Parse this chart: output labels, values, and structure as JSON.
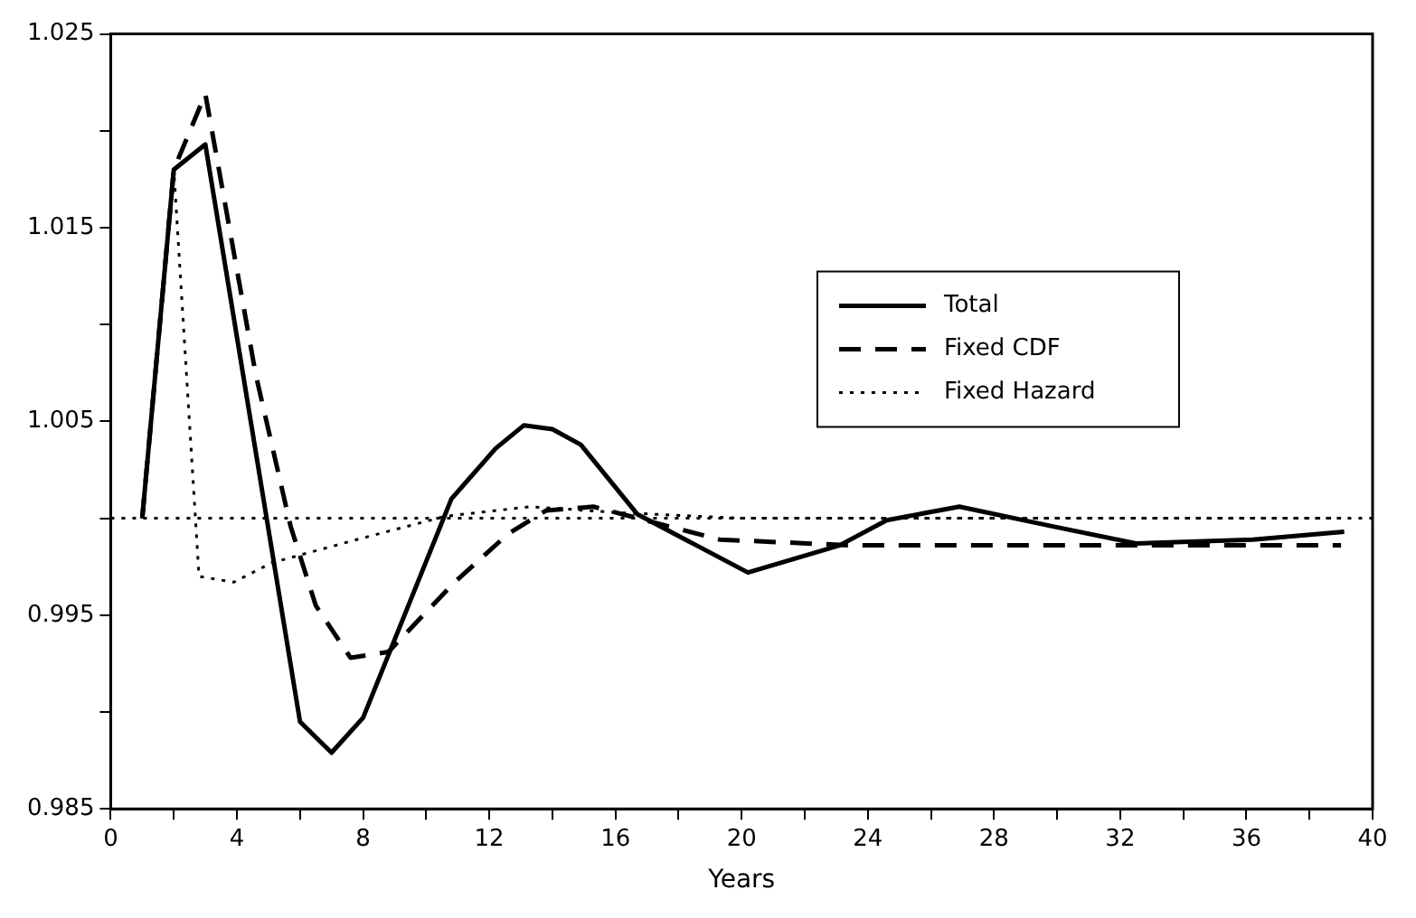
{
  "chart_data": {
    "type": "line",
    "xlabel": "Years",
    "xlim": [
      0,
      40
    ],
    "xticks": [
      0,
      {
        "value": 2,
        "label": null
      },
      4,
      {
        "value": 6,
        "label": null
      },
      8,
      {
        "value": 10,
        "label": null
      },
      12,
      {
        "value": 14,
        "label": null
      },
      16,
      {
        "value": 18,
        "label": null
      },
      20,
      {
        "value": 22,
        "label": null
      },
      24,
      {
        "value": 26,
        "label": null
      },
      28,
      {
        "value": 30,
        "label": null
      },
      32,
      {
        "value": 34,
        "label": null
      },
      36,
      {
        "value": 38,
        "label": null
      },
      40
    ],
    "ylim": [
      0.985,
      1.025
    ],
    "yticks": [
      0.985,
      {
        "value": 0.99,
        "label": null
      },
      0.995,
      {
        "value": 1.0,
        "label": null
      },
      1.005,
      {
        "value": 1.01,
        "label": null
      },
      1.015,
      {
        "value": 1.02,
        "label": null
      },
      1.025
    ],
    "grid": false,
    "legend": "right",
    "marker": "none",
    "ref_lines": [
      {
        "axis": "y",
        "value": 1.0,
        "color": "#000000",
        "line_style": "dotted"
      }
    ],
    "series": [
      {
        "name": "Total",
        "color": "#000000",
        "line_style": "solid",
        "x": [
          1,
          2,
          3,
          6,
          7,
          8,
          10.8,
          12.2,
          13.1,
          14,
          14.9,
          16.7,
          20.2,
          23.1,
          24.6,
          26.9,
          29.8,
          32.5,
          36.2,
          39.1
        ],
        "values": [
          1.0,
          1.018,
          1.0193,
          0.9895,
          0.9879,
          0.9897,
          1.001,
          1.0036,
          1.0048,
          1.0046,
          1.0038,
          1.0002,
          0.9972,
          0.9986,
          0.9999,
          1.0006,
          0.9996,
          0.9987,
          0.9989,
          0.9993
        ]
      },
      {
        "name": "Fixed CDF",
        "color": "#000000",
        "line_style": "dashed",
        "x": [
          1,
          2,
          3,
          4.6,
          5.7,
          6.5,
          7.6,
          8.8,
          10.9,
          12.6,
          13.8,
          15.3,
          19.3,
          23.5,
          39
        ],
        "values": [
          1.0,
          1.018,
          1.0219,
          1.0074,
          0.9996,
          0.9955,
          0.9928,
          0.9931,
          0.9967,
          0.9992,
          1.0004,
          1.0006,
          0.9989,
          0.9986,
          0.9986
        ]
      },
      {
        "name": "Fixed Hazard",
        "color": "#000000",
        "line_style": "dotted",
        "x": [
          1,
          2,
          2.8,
          3.9,
          5.1,
          7.8,
          10.6,
          13.3,
          16,
          20,
          39
        ],
        "values": [
          1.0,
          1.018,
          0.997,
          0.9967,
          0.9977,
          0.9989,
          1.0001,
          1.0006,
          1.0003,
          1.0,
          1.0
        ]
      }
    ]
  }
}
